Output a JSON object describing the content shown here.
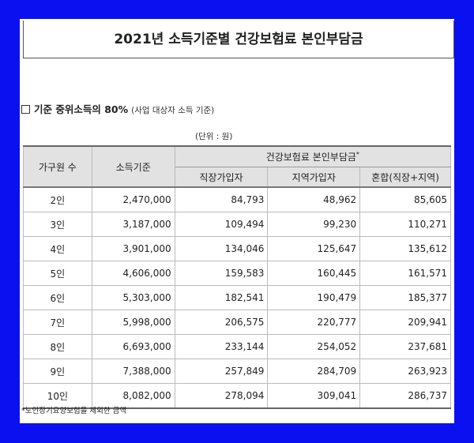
{
  "title": "2021년 소득기준별 건강보험료 본인부담금",
  "subheading": {
    "prefix": "기준 중위소득의 80%",
    "note": "(사업 대상자 소득 기준)"
  },
  "unit": "(단위 : 원)",
  "table": {
    "headers": {
      "household": "가구원 수",
      "income": "소득기준",
      "group": "건강보험료 본인부담금",
      "group_mark": "*",
      "workplace": "직장가입자",
      "regional": "지역가입자",
      "mixed": "혼합(직장+지역)"
    },
    "rows": [
      {
        "household": "2인",
        "income": "2,470,000",
        "workplace": "84,793",
        "regional": "48,962",
        "mixed": "85,605"
      },
      {
        "household": "3인",
        "income": "3,187,000",
        "workplace": "109,494",
        "regional": "99,230",
        "mixed": "110,271"
      },
      {
        "household": "4인",
        "income": "3,901,000",
        "workplace": "134,046",
        "regional": "125,647",
        "mixed": "135,612"
      },
      {
        "household": "5인",
        "income": "4,606,000",
        "workplace": "159,583",
        "regional": "160,445",
        "mixed": "161,571"
      },
      {
        "household": "6인",
        "income": "5,303,000",
        "workplace": "182,541",
        "regional": "190,479",
        "mixed": "185,377"
      },
      {
        "household": "7인",
        "income": "5,998,000",
        "workplace": "206,575",
        "regional": "220,777",
        "mixed": "209,941"
      },
      {
        "household": "8인",
        "income": "6,693,000",
        "workplace": "233,144",
        "regional": "254,052",
        "mixed": "237,681"
      },
      {
        "household": "9인",
        "income": "7,388,000",
        "workplace": "257,849",
        "regional": "284,709",
        "mixed": "263,923"
      },
      {
        "household": "10인",
        "income": "8,082,000",
        "workplace": "278,094",
        "regional": "309,041",
        "mixed": "286,737"
      }
    ]
  },
  "footnote": "*노인장기요양보험을 제외한 금액"
}
